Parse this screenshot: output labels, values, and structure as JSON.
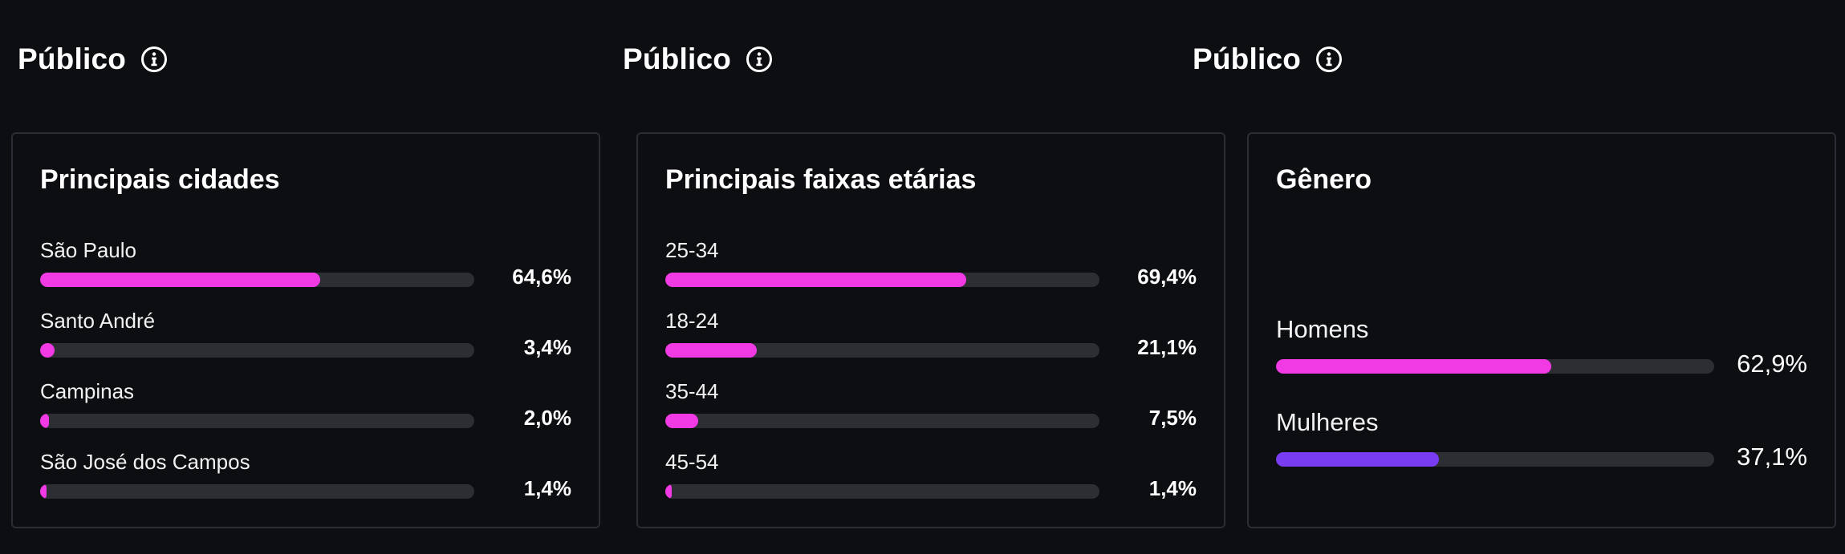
{
  "colors": {
    "background": "#0c0e12",
    "card_border": "#2a2d33",
    "track": "#2c2e33",
    "accent_pink": "#f23ae4",
    "accent_purple": "#7a3cf2"
  },
  "sections": [
    {
      "header": "Público",
      "info_icon": "info-circle-icon",
      "card_title": "Principais cidades",
      "rows": [
        {
          "label": "São Paulo",
          "value": "64,6%",
          "fraction": 0.646
        },
        {
          "label": "Santo André",
          "value": "3,4%",
          "fraction": 0.034
        },
        {
          "label": "Campinas",
          "value": "2,0%",
          "fraction": 0.02
        },
        {
          "label": "São José dos Campos",
          "value": "1,4%",
          "fraction": 0.014
        }
      ]
    },
    {
      "header": "Público",
      "info_icon": "info-circle-icon",
      "card_title": "Principais faixas etárias",
      "rows": [
        {
          "label": "25-34",
          "value": "69,4%",
          "fraction": 0.694
        },
        {
          "label": "18-24",
          "value": "21,1%",
          "fraction": 0.211
        },
        {
          "label": "35-44",
          "value": "7,5%",
          "fraction": 0.075
        },
        {
          "label": "45-54",
          "value": "1,4%",
          "fraction": 0.014
        }
      ]
    },
    {
      "header": "Público",
      "info_icon": "info-circle-icon",
      "card_title": "Gênero",
      "rows": [
        {
          "label": "Homens",
          "value": "62,9%",
          "fraction": 0.629,
          "color": "#f23ae4"
        },
        {
          "label": "Mulheres",
          "value": "37,1%",
          "fraction": 0.371,
          "color": "#7a3cf2"
        }
      ]
    }
  ]
}
